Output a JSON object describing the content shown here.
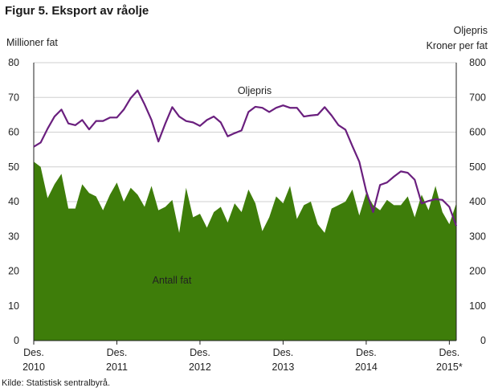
{
  "figure": {
    "title": "Figur 5. Eksport av råolje",
    "source": "Kilde: Statistisk sentralbyrå."
  },
  "chart_data": {
    "type": "area",
    "x_tick_labels": [
      {
        "line1": "Des.",
        "line2": "2010"
      },
      {
        "line1": "Des.",
        "line2": "2011"
      },
      {
        "line1": "Des.",
        "line2": "2012"
      },
      {
        "line1": "Des.",
        "line2": "2013"
      },
      {
        "line1": "Des.",
        "line2": "2014"
      },
      {
        "line1": "Des.",
        "line2": "2015*"
      }
    ],
    "y_left": {
      "title": "Millioner  fat",
      "min": 0,
      "max": 80,
      "ticks": [
        0,
        10,
        20,
        30,
        40,
        50,
        60,
        70,
        80
      ]
    },
    "y_right": {
      "title_line1": "Oljepris",
      "title_line2": "Kroner per fat",
      "min": 0,
      "max": 800,
      "ticks": [
        0,
        100,
        200,
        300,
        400,
        500,
        600,
        700,
        800
      ]
    },
    "grid": true,
    "area_color": "#3e7d0a",
    "line_color": "#6a1f7e",
    "series": [
      {
        "name": "Antall fat",
        "axis": "left",
        "kind": "area",
        "values": [
          51.5,
          50,
          41,
          45,
          48,
          38,
          38,
          45,
          42.5,
          41.5,
          37.5,
          42,
          45.5,
          40,
          44,
          42,
          38.5,
          44.5,
          37.5,
          38.5,
          40.5,
          31,
          44,
          35.5,
          36.5,
          32.5,
          37,
          38.5,
          34,
          39.5,
          37,
          43.5,
          39.5,
          31.5,
          35.5,
          41.5,
          39.5,
          44.5,
          35,
          39,
          40,
          33.5,
          31,
          38,
          39,
          40,
          43.5,
          36,
          42.5,
          39,
          37.5,
          40.5,
          39,
          39,
          41.5,
          35.5,
          42,
          37.5,
          44.5,
          37,
          33.5,
          39.5
        ]
      },
      {
        "name": "Oljepris",
        "axis": "right",
        "kind": "line",
        "values": [
          558,
          570,
          610,
          645,
          665,
          625,
          620,
          635,
          608,
          632,
          632,
          642,
          642,
          665,
          698,
          720,
          680,
          635,
          573,
          625,
          672,
          645,
          632,
          628,
          618,
          635,
          645,
          628,
          588,
          597,
          605,
          658,
          673,
          670,
          658,
          670,
          677,
          670,
          670,
          645,
          648,
          650,
          672,
          648,
          620,
          607,
          560,
          515,
          430,
          370,
          448,
          455,
          472,
          487,
          483,
          463,
          395,
          402,
          407,
          405,
          385,
          330
        ]
      }
    ]
  }
}
